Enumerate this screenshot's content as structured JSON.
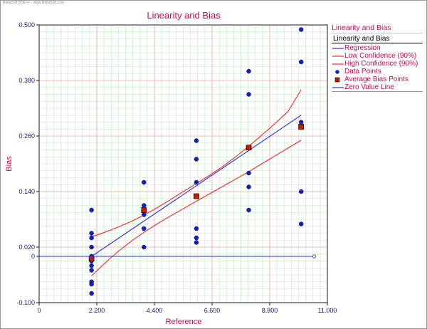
{
  "watermark": "ReliaSoft DOE++ - www.ReliaSoft.com",
  "colors": {
    "grid_minor": "#b8f0b8",
    "grid_major": "#f2a8a8",
    "regression": "#2a2aff",
    "confidence": "#ff2020",
    "points": "#1020c8",
    "avg_fill": "#cc1a00",
    "zero_line": "#2a2aff",
    "accent": "#e0004a"
  },
  "chart_data": {
    "type": "scatter",
    "title": "Linearity and Bias",
    "xlabel": "Reference",
    "ylabel": "Bias",
    "xlim": [
      0,
      11.0
    ],
    "ylim": [
      -0.1,
      0.5
    ],
    "x_ticks": [
      "0",
      "2.200",
      "4.400",
      "6.600",
      "8.800",
      "11.000"
    ],
    "x_tick_values": [
      0,
      2.2,
      4.4,
      6.6,
      8.8,
      11.0
    ],
    "y_ticks": [
      "0.500",
      "0.380",
      "0.260",
      "0.140",
      "0.020",
      "0",
      "-0.100"
    ],
    "y_tick_values": [
      0.5,
      0.38,
      0.26,
      0.14,
      0.02,
      0,
      -0.1
    ],
    "grid": true,
    "legend_position": "right",
    "legend_title": "Linearity and Bias",
    "legend_subtitle": "Linearity and Bias",
    "series": [
      {
        "name": "Regression",
        "kind": "line",
        "x": [
          2.0,
          10.0
        ],
        "y": [
          0.0,
          0.305
        ]
      },
      {
        "name": "Low Confidence (90%)",
        "kind": "line",
        "x": [
          2.0,
          2.5,
          3.0,
          3.5,
          4.0,
          4.5,
          5.0,
          5.5,
          6.0,
          6.5,
          7.0,
          7.5,
          8.0,
          8.5,
          9.0,
          9.5,
          10.0
        ],
        "y": [
          -0.042,
          -0.015,
          0.01,
          0.032,
          0.052,
          0.07,
          0.087,
          0.103,
          0.119,
          0.135,
          0.151,
          0.167,
          0.183,
          0.2,
          0.217,
          0.234,
          0.251
        ]
      },
      {
        "name": "High Confidence (90%)",
        "kind": "line",
        "x": [
          2.0,
          2.5,
          3.0,
          3.5,
          4.0,
          4.5,
          5.0,
          5.5,
          6.0,
          6.5,
          7.0,
          7.5,
          8.0,
          8.5,
          9.0,
          9.5,
          10.0
        ],
        "y": [
          0.042,
          0.052,
          0.063,
          0.075,
          0.089,
          0.105,
          0.122,
          0.14,
          0.157,
          0.175,
          0.194,
          0.215,
          0.238,
          0.262,
          0.287,
          0.313,
          0.36
        ]
      },
      {
        "name": "Data Points",
        "kind": "points",
        "x": [
          2,
          2,
          2,
          2,
          2,
          2,
          2,
          2,
          2,
          2,
          2,
          2,
          4,
          4,
          4,
          4,
          4,
          4,
          6,
          6,
          6,
          6,
          6,
          6,
          6,
          6,
          8,
          8,
          8,
          8,
          8,
          10,
          10,
          10,
          10,
          10,
          10
        ],
        "y": [
          0.1,
          0.05,
          0.04,
          0.02,
          0.0,
          -0.01,
          -0.03,
          -0.055,
          -0.06,
          -0.08,
          -0.02,
          0.0,
          0.16,
          0.11,
          0.1,
          0.09,
          0.06,
          0.02,
          0.25,
          0.21,
          0.16,
          0.06,
          0.04,
          0.03,
          0.13,
          0.13,
          0.4,
          0.35,
          0.18,
          0.15,
          0.1,
          0.49,
          0.42,
          0.29,
          0.28,
          0.14,
          0.07
        ]
      },
      {
        "name": "Average Bias Points",
        "kind": "squares",
        "x": [
          2,
          4,
          6,
          8,
          10
        ],
        "y": [
          -0.005,
          0.1,
          0.13,
          0.235,
          0.28
        ]
      },
      {
        "name": "Zero Value Line",
        "kind": "line",
        "x": [
          0,
          10.5
        ],
        "y": [
          0,
          0
        ]
      }
    ]
  }
}
